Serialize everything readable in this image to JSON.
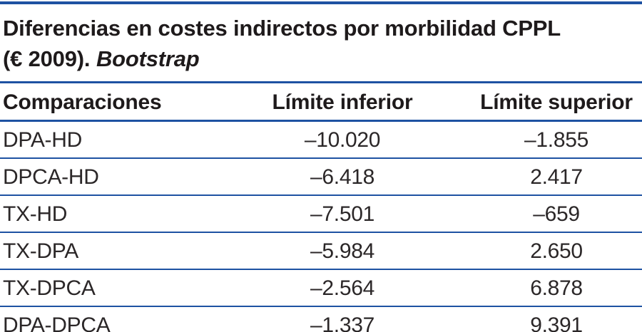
{
  "table": {
    "title_line1": "Diferencias en costes indirectos por morbilidad CPPL",
    "title_line2_plain": "(€ 2009).",
    "title_line2_italic": "Bootstrap",
    "columns": [
      "Comparaciones",
      "Límite inferior",
      "Límite superior"
    ],
    "rows": [
      {
        "comparacion": "DPA-HD",
        "inferior": "–10.020",
        "superior": "–1.855"
      },
      {
        "comparacion": "DPCA-HD",
        "inferior": "–6.418",
        "superior": "2.417"
      },
      {
        "comparacion": "TX-HD",
        "inferior": "–7.501",
        "superior": "–659"
      },
      {
        "comparacion": "TX-DPA",
        "inferior": "–5.984",
        "superior": "2.650"
      },
      {
        "comparacion": "TX-DPCA",
        "inferior": "–2.564",
        "superior": "6.878"
      },
      {
        "comparacion": "DPA-DPCA",
        "inferior": "–1.337",
        "superior": "9.391"
      }
    ]
  },
  "colors": {
    "rule_blue": "#1e52a2",
    "text": "#231f20"
  }
}
